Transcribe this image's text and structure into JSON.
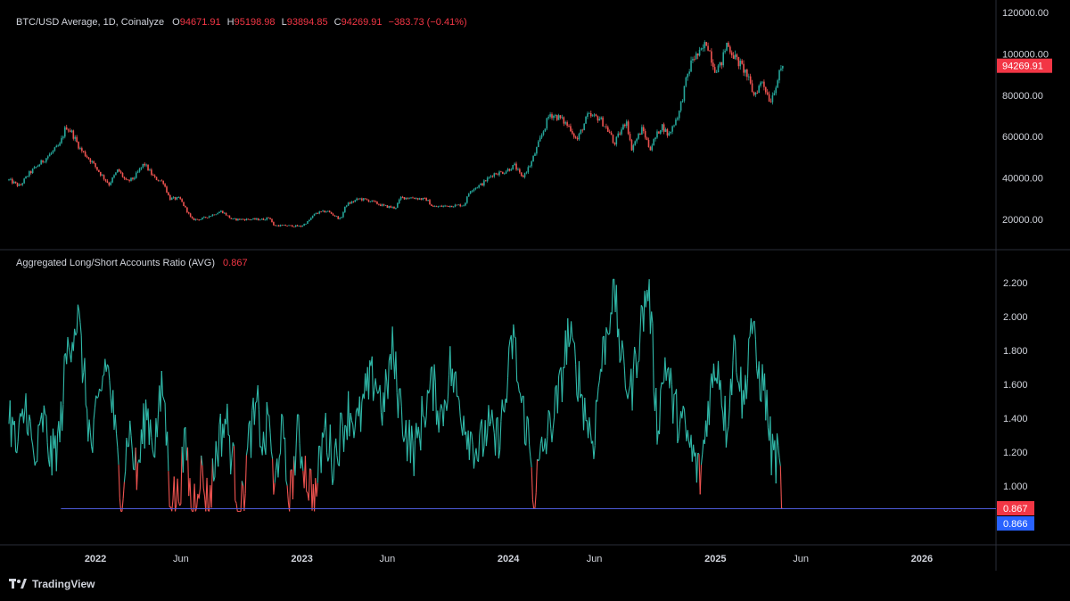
{
  "colors": {
    "up": "#26a69a",
    "down": "#ef5350",
    "ratio": "#30b9a9",
    "ratio_low": "#ef5350",
    "hline": "#4d5bd9",
    "badge_red": "#f23645",
    "badge_blue": "#2962ff",
    "grid_border": "#2a2e39"
  },
  "price_legend": {
    "symbol": "BTC/USD Average, 1D, Coinalyze",
    "o_label": "O",
    "o": "94671.91",
    "h_label": "H",
    "h": "95198.98",
    "l_label": "L",
    "l": "93894.85",
    "c_label": "C",
    "c": "94269.91",
    "change": "−383.73 (−0.41%)"
  },
  "ratio_legend": {
    "name": "Aggregated Long/Short Accounts Ratio (AVG)",
    "value": "0.867"
  },
  "footer": {
    "brand": "TradingView"
  },
  "chart_data": [
    {
      "type": "candlestick",
      "title": "BTC/USD Average, 1D, Coinalyze",
      "ylim": [
        10000,
        120000
      ],
      "y_ticks": [
        "120000.00",
        "100000.00",
        "80000.00",
        "60000.00",
        "40000.00",
        "20000.00"
      ],
      "last_value_label": "94269.91",
      "x_range": [
        "2021-08-01",
        "2026-05-01"
      ],
      "x_ticks": [
        {
          "date": "2021-06-01",
          "label": "Jun",
          "bold": false
        },
        {
          "date": "2022-01-01",
          "label": "2022",
          "bold": true
        },
        {
          "date": "2022-06-01",
          "label": "Jun",
          "bold": false
        },
        {
          "date": "2023-01-01",
          "label": "2023",
          "bold": true
        },
        {
          "date": "2023-06-01",
          "label": "Jun",
          "bold": false
        },
        {
          "date": "2024-01-01",
          "label": "2024",
          "bold": true
        },
        {
          "date": "2024-06-01",
          "label": "Jun",
          "bold": false
        },
        {
          "date": "2025-01-01",
          "label": "2025",
          "bold": true
        },
        {
          "date": "2025-06-01",
          "label": "Jun",
          "bold": false
        },
        {
          "date": "2026-01-01",
          "label": "2026",
          "bold": true
        }
      ],
      "close_path": [
        [
          "2021-08-01",
          39000
        ],
        [
          "2021-08-20",
          36000
        ],
        [
          "2021-09-05",
          42000
        ],
        [
          "2021-09-25",
          47000
        ],
        [
          "2021-10-15",
          52000
        ],
        [
          "2021-10-30",
          56000
        ],
        [
          "2021-11-10",
          65000
        ],
        [
          "2021-11-20",
          62000
        ],
        [
          "2021-12-05",
          54000
        ],
        [
          "2021-12-25",
          48000
        ],
        [
          "2022-01-10",
          42000
        ],
        [
          "2022-01-25",
          37000
        ],
        [
          "2022-02-10",
          44000
        ],
        [
          "2022-02-25",
          38000
        ],
        [
          "2022-03-10",
          40000
        ],
        [
          "2022-03-28",
          47000
        ],
        [
          "2022-04-15",
          40000
        ],
        [
          "2022-05-01",
          38000
        ],
        [
          "2022-05-12",
          30000
        ],
        [
          "2022-05-30",
          30000
        ],
        [
          "2022-06-12",
          24000
        ],
        [
          "2022-06-20",
          20000
        ],
        [
          "2022-07-05",
          20000
        ],
        [
          "2022-07-25",
          22000
        ],
        [
          "2022-08-12",
          24000
        ],
        [
          "2022-08-30",
          20000
        ],
        [
          "2022-09-15",
          20000
        ],
        [
          "2022-10-05",
          20000
        ],
        [
          "2022-10-25",
          20000
        ],
        [
          "2022-11-05",
          21000
        ],
        [
          "2022-11-12",
          17000
        ],
        [
          "2022-12-05",
          17000
        ],
        [
          "2022-12-30",
          16600
        ],
        [
          "2023-01-12",
          19000
        ],
        [
          "2023-01-25",
          23000
        ],
        [
          "2023-02-15",
          24000
        ],
        [
          "2023-03-10",
          20000
        ],
        [
          "2023-03-20",
          27000
        ],
        [
          "2023-04-12",
          30000
        ],
        [
          "2023-05-01",
          29000
        ],
        [
          "2023-05-25",
          26500
        ],
        [
          "2023-06-15",
          25500
        ],
        [
          "2023-06-25",
          30500
        ],
        [
          "2023-07-15",
          30500
        ],
        [
          "2023-08-10",
          29500
        ],
        [
          "2023-08-20",
          26000
        ],
        [
          "2023-09-15",
          26500
        ],
        [
          "2023-10-15",
          27000
        ],
        [
          "2023-10-25",
          34000
        ],
        [
          "2023-11-15",
          37000
        ],
        [
          "2023-12-05",
          42000
        ],
        [
          "2023-12-25",
          43000
        ],
        [
          "2024-01-12",
          46000
        ],
        [
          "2024-01-25",
          40000
        ],
        [
          "2024-02-10",
          47000
        ],
        [
          "2024-02-28",
          60000
        ],
        [
          "2024-03-14",
          71000
        ],
        [
          "2024-04-01",
          69000
        ],
        [
          "2024-04-20",
          64000
        ],
        [
          "2024-05-01",
          58000
        ],
        [
          "2024-05-20",
          70000
        ],
        [
          "2024-06-10",
          69000
        ],
        [
          "2024-06-30",
          61000
        ],
        [
          "2024-07-05",
          56000
        ],
        [
          "2024-07-28",
          68000
        ],
        [
          "2024-08-05",
          54000
        ],
        [
          "2024-08-25",
          64000
        ],
        [
          "2024-09-07",
          54000
        ],
        [
          "2024-09-28",
          65500
        ],
        [
          "2024-10-10",
          60500
        ],
        [
          "2024-10-29",
          72000
        ],
        [
          "2024-11-12",
          89000
        ],
        [
          "2024-11-22",
          98000
        ],
        [
          "2024-12-05",
          100000
        ],
        [
          "2024-12-17",
          106000
        ],
        [
          "2024-12-30",
          93000
        ],
        [
          "2025-01-10",
          94000
        ],
        [
          "2025-01-21",
          105000
        ],
        [
          "2025-02-05",
          98000
        ],
        [
          "2025-02-24",
          91000
        ],
        [
          "2025-03-10",
          80000
        ],
        [
          "2025-03-25",
          87000
        ],
        [
          "2025-04-08",
          77000
        ],
        [
          "2025-04-20",
          87000
        ],
        [
          "2025-04-30",
          94269.91
        ]
      ]
    },
    {
      "type": "line",
      "title": "Aggregated Long/Short Accounts Ratio (AVG)",
      "ylim": [
        0.7,
        2.4
      ],
      "y_ticks": [
        "2.200",
        "2.000",
        "1.800",
        "1.600",
        "1.400",
        "1.200",
        "1.000"
      ],
      "last_value_label": "0.867",
      "hline_value": 0.866,
      "hline_label": "0.866",
      "hline_start": "2021-11-01",
      "low_threshold": 1.0,
      "x_range": [
        "2021-08-01",
        "2026-05-01"
      ],
      "series_path": [
        [
          "2021-08-01",
          1.45
        ],
        [
          "2021-08-15",
          1.2
        ],
        [
          "2021-09-01",
          1.5
        ],
        [
          "2021-09-15",
          1.1
        ],
        [
          "2021-10-01",
          1.4
        ],
        [
          "2021-10-15",
          1.15
        ],
        [
          "2021-10-30",
          1.3
        ],
        [
          "2021-11-10",
          1.75
        ],
        [
          "2021-11-20",
          1.9
        ],
        [
          "2021-12-01",
          2.0
        ],
        [
          "2021-12-10",
          1.7
        ],
        [
          "2021-12-25",
          1.2
        ],
        [
          "2022-01-10",
          1.55
        ],
        [
          "2022-01-20",
          1.75
        ],
        [
          "2022-02-01",
          1.45
        ],
        [
          "2022-02-15",
          0.9
        ],
        [
          "2022-03-01",
          1.35
        ],
        [
          "2022-03-15",
          1.05
        ],
        [
          "2022-04-01",
          1.45
        ],
        [
          "2022-04-15",
          1.25
        ],
        [
          "2022-05-01",
          1.6
        ],
        [
          "2022-05-12",
          1.0
        ],
        [
          "2022-05-25",
          0.9
        ],
        [
          "2022-06-10",
          1.25
        ],
        [
          "2022-06-20",
          0.85
        ],
        [
          "2022-07-05",
          1.1
        ],
        [
          "2022-07-20",
          0.88
        ],
        [
          "2022-08-05",
          1.25
        ],
        [
          "2022-08-20",
          1.4
        ],
        [
          "2022-09-05",
          1.05
        ],
        [
          "2022-09-15",
          0.82
        ],
        [
          "2022-10-01",
          1.3
        ],
        [
          "2022-10-15",
          1.45
        ],
        [
          "2022-10-25",
          1.2
        ],
        [
          "2022-11-05",
          1.45
        ],
        [
          "2022-11-12",
          0.9
        ],
        [
          "2022-11-25",
          1.35
        ],
        [
          "2022-12-10",
          0.9
        ],
        [
          "2022-12-25",
          1.3
        ],
        [
          "2023-01-10",
          1.05
        ],
        [
          "2023-01-25",
          0.93
        ],
        [
          "2023-02-10",
          1.35
        ],
        [
          "2023-02-25",
          1.15
        ],
        [
          "2023-03-10",
          1.3
        ],
        [
          "2023-03-25",
          1.45
        ],
        [
          "2023-04-10",
          1.35
        ],
        [
          "2023-04-25",
          1.55
        ],
        [
          "2023-05-10",
          1.65
        ],
        [
          "2023-05-25",
          1.45
        ],
        [
          "2023-06-10",
          1.8
        ],
        [
          "2023-06-20",
          1.55
        ],
        [
          "2023-07-05",
          1.3
        ],
        [
          "2023-07-20",
          1.2
        ],
        [
          "2023-08-05",
          1.45
        ],
        [
          "2023-08-20",
          1.6
        ],
        [
          "2023-09-05",
          1.4
        ],
        [
          "2023-09-20",
          1.7
        ],
        [
          "2023-10-05",
          1.5
        ],
        [
          "2023-10-25",
          1.3
        ],
        [
          "2023-11-10",
          1.2
        ],
        [
          "2023-11-25",
          1.35
        ],
        [
          "2023-12-10",
          1.25
        ],
        [
          "2023-12-25",
          1.45
        ],
        [
          "2024-01-10",
          1.9
        ],
        [
          "2024-01-20",
          1.55
        ],
        [
          "2024-02-05",
          1.3
        ],
        [
          "2024-02-15",
          0.95
        ],
        [
          "2024-03-01",
          1.2
        ],
        [
          "2024-03-15",
          1.35
        ],
        [
          "2024-04-01",
          1.55
        ],
        [
          "2024-04-15",
          1.9
        ],
        [
          "2024-04-30",
          1.7
        ],
        [
          "2024-05-15",
          1.45
        ],
        [
          "2024-05-30",
          1.25
        ],
        [
          "2024-06-10",
          1.65
        ],
        [
          "2024-06-25",
          1.95
        ],
        [
          "2024-07-05",
          2.2
        ],
        [
          "2024-07-20",
          1.7
        ],
        [
          "2024-08-05",
          1.55
        ],
        [
          "2024-08-20",
          1.9
        ],
        [
          "2024-09-05",
          2.2
        ],
        [
          "2024-09-20",
          1.35
        ],
        [
          "2024-10-05",
          1.75
        ],
        [
          "2024-10-20",
          1.45
        ],
        [
          "2024-11-05",
          1.35
        ],
        [
          "2024-11-20",
          1.2
        ],
        [
          "2024-12-05",
          1.05
        ],
        [
          "2024-12-20",
          1.5
        ],
        [
          "2025-01-05",
          1.75
        ],
        [
          "2025-01-20",
          1.35
        ],
        [
          "2025-02-05",
          1.85
        ],
        [
          "2025-02-20",
          1.45
        ],
        [
          "2025-03-05",
          2.0
        ],
        [
          "2025-03-15",
          1.7
        ],
        [
          "2025-03-30",
          1.55
        ],
        [
          "2025-04-10",
          1.2
        ],
        [
          "2025-04-22",
          1.15
        ],
        [
          "2025-04-30",
          0.867
        ]
      ]
    }
  ]
}
